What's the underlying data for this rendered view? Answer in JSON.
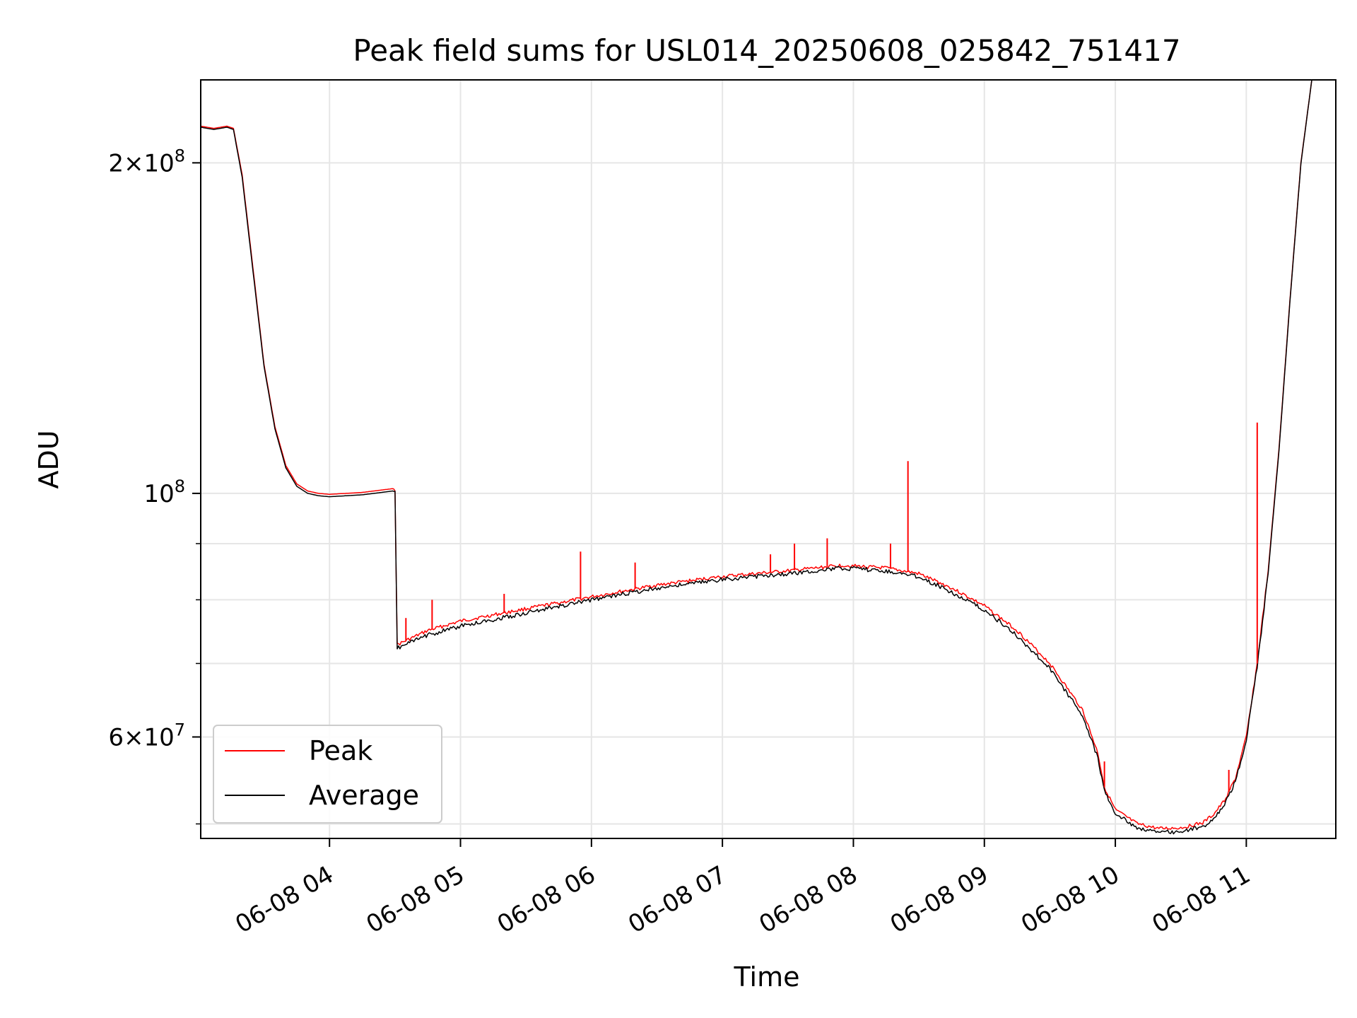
{
  "chart_data": {
    "type": "line",
    "title": "Peak field sums for USL014_20250608_025842_751417",
    "xlabel": "Time",
    "ylabel": "ADU",
    "yscale": "log",
    "ylim": [
      48500000,
      238000000
    ],
    "xlim": [
      "06-08 03:01",
      "06-08 11:41"
    ],
    "x_ticks": [
      "06-08 04",
      "06-08 05",
      "06-08 06",
      "06-08 07",
      "06-08 08",
      "06-08 09",
      "06-08 10",
      "06-08 11"
    ],
    "y_ticks_major": [
      {
        "label": "10",
        "exp": "8",
        "mant": ""
      },
      {
        "label": "2×10",
        "exp": "8",
        "mant": "2"
      },
      {
        "label": "6×10",
        "exp": "7",
        "mant": "6"
      }
    ],
    "y_major_values": [
      100000000,
      200000000,
      60000000
    ],
    "y_minor_values": [
      50000000,
      70000000,
      80000000,
      90000000
    ],
    "grid": true,
    "legend_placement": "lower-left",
    "series": [
      {
        "name": "Peak",
        "color": "#ff0000",
        "x": [
          "06-08 03:01",
          "06-08 03:07",
          "06-08 03:13",
          "06-08 03:16",
          "06-08 03:20",
          "06-08 03:25",
          "06-08 03:30",
          "06-08 03:35",
          "06-08 03:40",
          "06-08 03:45",
          "06-08 03:50",
          "06-08 03:55",
          "06-08 04:00",
          "06-08 04:15",
          "06-08 04:29",
          "06-08 04:30",
          "06-08 04:31",
          "06-08 04:45",
          "06-08 05:00",
          "06-08 05:30",
          "06-08 06:00",
          "06-08 06:30",
          "06-08 07:00",
          "06-08 07:30",
          "06-08 07:55",
          "06-08 08:15",
          "06-08 08:30",
          "06-08 08:45",
          "06-08 09:00",
          "06-08 09:15",
          "06-08 09:30",
          "06-08 09:45",
          "06-08 09:52",
          "06-08 09:55",
          "06-08 10:00",
          "06-08 10:10",
          "06-08 10:20",
          "06-08 10:30",
          "06-08 10:40",
          "06-08 10:45",
          "06-08 10:50",
          "06-08 10:55",
          "06-08 11:00",
          "06-08 11:05",
          "06-08 11:10",
          "06-08 11:15",
          "06-08 11:20",
          "06-08 11:25",
          "06-08 11:30",
          "06-08 11:41"
        ],
        "y": [
          216000000,
          215000000,
          216000000,
          215000000,
          195000000,
          160000000,
          131000000,
          115000000,
          106000000,
          102000000,
          100500000,
          100000000,
          99800000,
          100200000,
          101000000,
          100800000,
          72800000,
          75000000,
          76500000,
          78500000,
          80500000,
          82500000,
          84000000,
          85000000,
          86000000,
          85500000,
          84500000,
          82000000,
          79000000,
          75000000,
          70000000,
          63500000,
          58000000,
          54000000,
          51500000,
          50000000,
          49500000,
          49600000,
          50100000,
          51000000,
          52500000,
          55000000,
          60000000,
          70000000,
          85000000,
          110000000,
          150000000,
          200000000,
          238000000,
          238000000
        ]
      },
      {
        "name": "Average",
        "color": "#000000",
        "x": [
          "06-08 03:01",
          "06-08 03:07",
          "06-08 03:13",
          "06-08 03:16",
          "06-08 03:20",
          "06-08 03:25",
          "06-08 03:30",
          "06-08 03:35",
          "06-08 03:40",
          "06-08 03:45",
          "06-08 03:50",
          "06-08 03:55",
          "06-08 04:00",
          "06-08 04:15",
          "06-08 04:29",
          "06-08 04:30",
          "06-08 04:31",
          "06-08 04:45",
          "06-08 05:00",
          "06-08 05:30",
          "06-08 06:00",
          "06-08 06:30",
          "06-08 07:00",
          "06-08 07:30",
          "06-08 07:55",
          "06-08 08:15",
          "06-08 08:30",
          "06-08 08:45",
          "06-08 09:00",
          "06-08 09:15",
          "06-08 09:30",
          "06-08 09:45",
          "06-08 09:52",
          "06-08 09:55",
          "06-08 10:00",
          "06-08 10:10",
          "06-08 10:20",
          "06-08 10:30",
          "06-08 10:40",
          "06-08 10:45",
          "06-08 10:50",
          "06-08 10:55",
          "06-08 11:00",
          "06-08 11:05",
          "06-08 11:10",
          "06-08 11:15",
          "06-08 11:20",
          "06-08 11:25",
          "06-08 11:30",
          "06-08 11:41"
        ],
        "y": [
          215500000,
          214500000,
          215500000,
          214500000,
          194000000,
          159000000,
          130500000,
          114500000,
          105500000,
          101500000,
          100000000,
          99500000,
          99300000,
          99700000,
          100500000,
          100300000,
          72300000,
          74300000,
          75700000,
          77800000,
          80000000,
          82000000,
          83500000,
          84500000,
          85500000,
          85000000,
          84000000,
          81300000,
          78300000,
          74200000,
          69200000,
          62800000,
          57400000,
          53500000,
          51100000,
          49600000,
          49100000,
          49200000,
          49700000,
          50600000,
          52100000,
          54600000,
          59600000,
          69500000,
          84500000,
          109500000,
          149500000,
          199500000,
          238000000,
          238000000
        ]
      }
    ],
    "peak_spikes": [
      {
        "x": "06-08 04:35",
        "y": 77000000
      },
      {
        "x": "06-08 04:47",
        "y": 80000000
      },
      {
        "x": "06-08 05:20",
        "y": 81000000
      },
      {
        "x": "06-08 05:55",
        "y": 88500000
      },
      {
        "x": "06-08 06:20",
        "y": 86500000
      },
      {
        "x": "06-08 07:22",
        "y": 88000000
      },
      {
        "x": "06-08 07:33",
        "y": 90000000
      },
      {
        "x": "06-08 07:48",
        "y": 91000000
      },
      {
        "x": "06-08 08:17",
        "y": 90000000
      },
      {
        "x": "06-08 08:25",
        "y": 107000000
      },
      {
        "x": "06-08 09:55",
        "y": 57000000
      },
      {
        "x": "06-08 10:52",
        "y": 56000000
      },
      {
        "x": "06-08 11:05",
        "y": 116000000
      }
    ],
    "legend": [
      {
        "label": "Peak",
        "color": "#ff0000"
      },
      {
        "label": "Average",
        "color": "#000000"
      }
    ]
  }
}
